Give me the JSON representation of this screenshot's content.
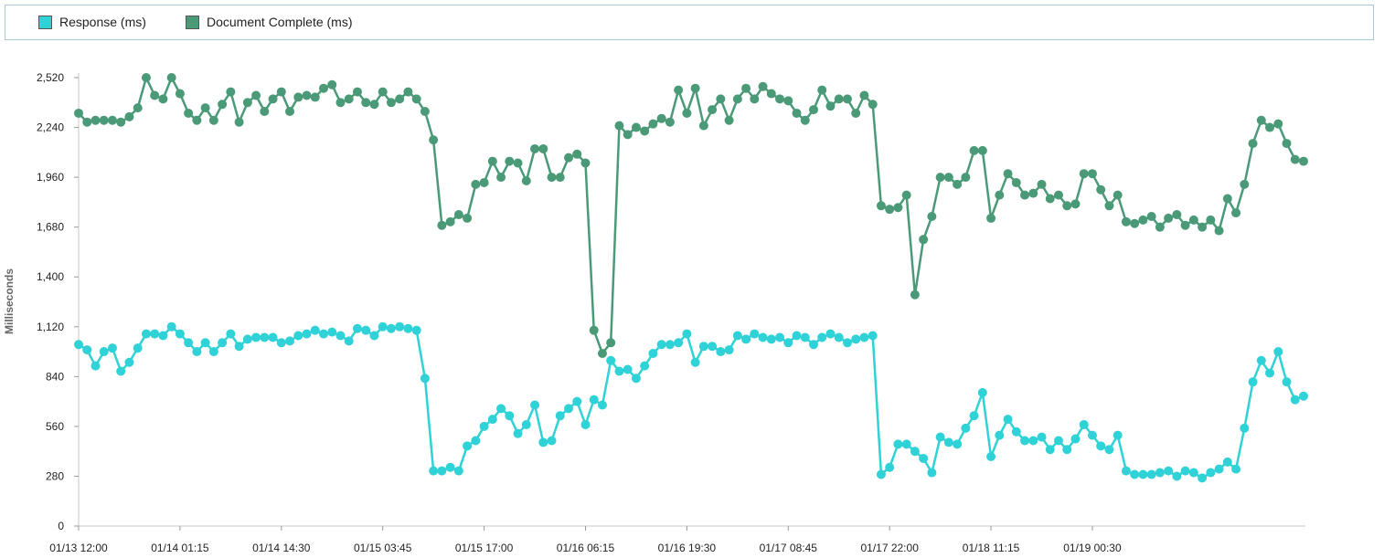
{
  "legend": {
    "items": [
      {
        "label": "Response (ms)",
        "color": "#2fd2d6"
      },
      {
        "label": "Document Complete (ms)",
        "color": "#4a9a78"
      }
    ]
  },
  "chart_data": {
    "type": "line",
    "ylabel": "Milliseconds",
    "ylim": [
      0,
      2520
    ],
    "yticks": [
      0,
      280,
      560,
      840,
      1120,
      1400,
      1680,
      1960,
      2240,
      2520
    ],
    "ytick_labels": [
      "0",
      "280",
      "560",
      "840",
      "1,120",
      "1,400",
      "1,680",
      "1,960",
      "2,240",
      "2,520"
    ],
    "xtick_labels": [
      "01/13 12:00",
      "01/14 01:15",
      "01/14 14:30",
      "01/15 03:45",
      "01/15 17:00",
      "01/16 06:15",
      "01/16 19:30",
      "01/17 08:45",
      "01/17 22:00",
      "01/18 11:15",
      "01/19 00:30"
    ],
    "xtick_index": [
      0,
      12,
      24,
      36,
      48,
      60,
      72,
      84,
      96,
      108,
      120
    ],
    "legend_position": "top",
    "grid": false,
    "series": [
      {
        "name": "Document Complete (ms)",
        "color": "#4a9a78",
        "values": [
          2320,
          2270,
          2280,
          2280,
          2280,
          2270,
          2300,
          2350,
          2520,
          2420,
          2400,
          2520,
          2430,
          2320,
          2280,
          2350,
          2280,
          2370,
          2440,
          2270,
          2380,
          2420,
          2330,
          2400,
          2440,
          2330,
          2410,
          2420,
          2410,
          2460,
          2480,
          2380,
          2400,
          2440,
          2380,
          2370,
          2440,
          2380,
          2400,
          2440,
          2400,
          2330,
          2170,
          1690,
          1710,
          1750,
          1730,
          1920,
          1930,
          2050,
          1960,
          2050,
          2040,
          1940,
          2120,
          2120,
          1960,
          1960,
          2070,
          2090,
          2040,
          1100,
          970,
          1030,
          2250,
          2200,
          2240,
          2220,
          2260,
          2290,
          2270,
          2450,
          2320,
          2460,
          2250,
          2340,
          2400,
          2280,
          2400,
          2460,
          2400,
          2470,
          2430,
          2400,
          2390,
          2320,
          2280,
          2340,
          2450,
          2360,
          2400,
          2400,
          2320,
          2420,
          2370,
          1800,
          1780,
          1790,
          1860,
          1300,
          1610,
          1740,
          1960,
          1960,
          1920,
          1960,
          2110,
          2110,
          1730,
          1860,
          1980,
          1930,
          1860,
          1870,
          1920,
          1840,
          1860,
          1800,
          1810,
          1980,
          1980,
          1890,
          1800,
          1860,
          1710,
          1700,
          1720,
          1740,
          1680,
          1730,
          1750,
          1690,
          1720,
          1680,
          1720,
          1660,
          1840,
          1760,
          1920,
          2150,
          2280,
          2240,
          2260,
          2150,
          2060,
          2050
        ]
      },
      {
        "name": "Response (ms)",
        "color": "#2fd2d6",
        "values": [
          1020,
          990,
          900,
          980,
          1000,
          870,
          920,
          1000,
          1080,
          1080,
          1070,
          1120,
          1080,
          1030,
          980,
          1030,
          980,
          1030,
          1080,
          1010,
          1050,
          1060,
          1060,
          1060,
          1030,
          1040,
          1070,
          1080,
          1100,
          1080,
          1090,
          1070,
          1040,
          1110,
          1100,
          1070,
          1120,
          1110,
          1120,
          1110,
          1100,
          830,
          310,
          310,
          330,
          310,
          450,
          480,
          560,
          600,
          660,
          620,
          520,
          570,
          680,
          470,
          480,
          620,
          660,
          700,
          570,
          710,
          680,
          930,
          870,
          880,
          830,
          900,
          970,
          1020,
          1020,
          1030,
          1080,
          920,
          1010,
          1010,
          980,
          990,
          1070,
          1050,
          1080,
          1060,
          1050,
          1060,
          1030,
          1070,
          1060,
          1020,
          1060,
          1080,
          1060,
          1030,
          1050,
          1060,
          1070,
          290,
          330,
          460,
          460,
          420,
          380,
          300,
          500,
          470,
          460,
          550,
          620,
          750,
          390,
          510,
          600,
          530,
          480,
          480,
          500,
          430,
          480,
          430,
          490,
          570,
          510,
          450,
          430,
          510,
          310,
          290,
          290,
          290,
          300,
          310,
          280,
          310,
          300,
          270,
          300,
          320,
          360,
          320,
          550,
          810,
          930,
          860,
          980,
          810,
          710,
          730
        ]
      }
    ]
  }
}
